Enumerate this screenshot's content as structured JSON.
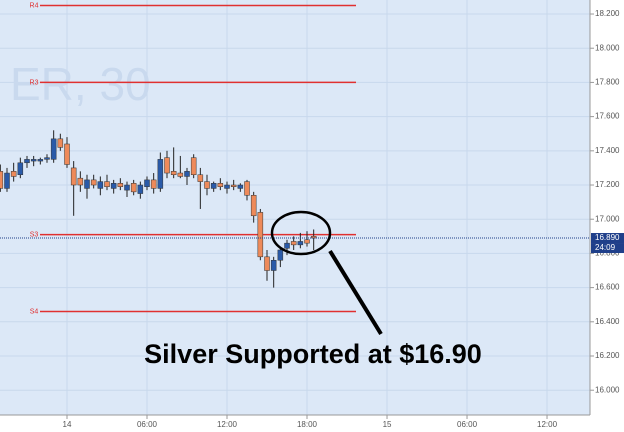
{
  "chart_data": {
    "type": "candlestick",
    "watermark": "ER, 30",
    "annotation": "Silver Supported at $16.90",
    "categories": [
      null,
      null,
      null,
      null,
      null,
      null,
      null,
      null,
      null,
      null,
      "14",
      null,
      null,
      null,
      null,
      null,
      null,
      null,
      null,
      null,
      null,
      null,
      "06:00",
      null,
      null,
      null,
      null,
      null,
      null,
      null,
      null,
      null,
      null,
      null,
      "12:00",
      null,
      null,
      null,
      null,
      null,
      null,
      null,
      null,
      null,
      null,
      null,
      "18:00",
      null,
      null,
      null,
      null,
      null,
      null,
      null,
      null,
      null,
      null,
      null,
      "15",
      null,
      null,
      null,
      null,
      null,
      null,
      null,
      null,
      null,
      null,
      null,
      "06:00",
      null,
      null,
      null,
      null,
      null,
      null,
      null,
      null,
      null,
      null,
      null,
      "12:00",
      null,
      null,
      null,
      null,
      null
    ],
    "open": [
      17.28,
      17.18,
      17.28,
      17.26,
      17.33,
      17.34,
      17.34,
      17.35,
      17.35,
      17.47,
      17.44,
      17.3,
      17.24,
      17.18,
      17.23,
      17.18,
      17.22,
      17.18,
      17.21,
      17.17,
      17.21,
      17.15,
      17.19,
      17.23,
      17.18,
      17.36,
      17.28,
      17.27,
      17.25,
      17.36,
      17.26,
      17.22,
      17.18,
      17.21,
      17.18,
      17.2,
      17.18,
      17.22,
      17.14,
      17.04,
      16.78,
      16.7,
      16.76,
      16.83,
      16.87,
      16.85,
      16.88,
      16.9,
      null,
      null,
      null,
      null,
      null,
      null,
      null,
      null,
      null,
      null,
      null,
      null,
      null,
      null,
      null,
      null,
      null,
      null,
      null,
      null,
      null,
      null,
      null,
      null,
      null,
      null,
      null,
      null,
      null,
      null,
      null,
      null,
      null,
      null,
      null,
      null,
      null,
      null,
      null,
      null
    ],
    "high": [
      17.32,
      17.3,
      17.33,
      17.36,
      17.37,
      17.37,
      17.36,
      17.38,
      17.52,
      17.5,
      17.48,
      17.34,
      17.28,
      17.26,
      17.26,
      17.25,
      17.26,
      17.23,
      17.24,
      17.22,
      17.23,
      17.22,
      17.25,
      17.27,
      17.39,
      17.4,
      17.42,
      17.37,
      17.3,
      17.38,
      17.3,
      17.26,
      17.22,
      17.24,
      17.22,
      17.23,
      17.21,
      17.23,
      17.16,
      17.06,
      16.82,
      16.78,
      16.84,
      16.88,
      16.9,
      16.92,
      16.93,
      16.94,
      null,
      null,
      null,
      null,
      null,
      null,
      null,
      null,
      null,
      null,
      null,
      null,
      null,
      null,
      null,
      null,
      null,
      null,
      null,
      null,
      null,
      null,
      null,
      null,
      null,
      null,
      null,
      null,
      null,
      null,
      null,
      null,
      null,
      null,
      null,
      null,
      null,
      null,
      null,
      null
    ],
    "low": [
      17.16,
      17.16,
      17.22,
      17.24,
      17.3,
      17.31,
      17.32,
      17.33,
      17.33,
      17.4,
      17.3,
      17.02,
      17.16,
      17.12,
      17.18,
      17.14,
      17.17,
      17.15,
      17.17,
      17.13,
      17.14,
      17.12,
      17.17,
      17.15,
      17.16,
      17.24,
      17.24,
      17.24,
      17.2,
      17.24,
      17.06,
      17.14,
      17.16,
      17.17,
      17.15,
      17.17,
      17.16,
      17.11,
      16.98,
      16.76,
      16.64,
      16.6,
      16.72,
      16.79,
      16.82,
      16.83,
      16.84,
      16.82,
      null,
      null,
      null,
      null,
      null,
      null,
      null,
      null,
      null,
      null,
      null,
      null,
      null,
      null,
      null,
      null,
      null,
      null,
      null,
      null,
      null,
      null,
      null,
      null,
      null,
      null,
      null,
      null,
      null,
      null,
      null,
      null,
      null,
      null,
      null,
      null,
      null,
      null,
      null,
      null
    ],
    "close": [
      17.18,
      17.27,
      17.25,
      17.33,
      17.35,
      17.35,
      17.35,
      17.36,
      17.47,
      17.42,
      17.32,
      17.2,
      17.2,
      17.23,
      17.2,
      17.22,
      17.19,
      17.21,
      17.19,
      17.2,
      17.16,
      17.2,
      17.23,
      17.18,
      17.35,
      17.27,
      17.26,
      17.25,
      17.28,
      17.26,
      17.22,
      17.18,
      17.21,
      17.19,
      17.2,
      17.19,
      17.2,
      17.14,
      17.02,
      16.78,
      16.7,
      16.76,
      16.82,
      16.86,
      16.85,
      16.87,
      16.86,
      16.89,
      null,
      null,
      null,
      null,
      null,
      null,
      null,
      null,
      null,
      null,
      null,
      null,
      null,
      null,
      null,
      null,
      null,
      null,
      null,
      null,
      null,
      null,
      null,
      null,
      null,
      null,
      null,
      null,
      null,
      null,
      null,
      null,
      null,
      null,
      null,
      null,
      null,
      null,
      null,
      null
    ],
    "up_color": "#2a5aa8",
    "down_color": "#ee8a5a",
    "levels": [
      {
        "label": "R4",
        "value": 18.25,
        "color": "#e03030"
      },
      {
        "label": "R3",
        "value": 17.8,
        "color": "#e03030"
      },
      {
        "label": "S3",
        "value": 16.91,
        "color": "#e03030"
      },
      {
        "label": "S4",
        "value": 16.46,
        "color": "#e03030"
      }
    ],
    "current_price": {
      "value": 16.89,
      "label": "16.890"
    },
    "countdown": "24:09",
    "ylim": [
      15.855,
      18.282
    ],
    "yticks": [
      {
        "value": 16.0,
        "label": "16.000"
      },
      {
        "value": 16.2,
        "label": "16.200"
      },
      {
        "value": 16.4,
        "label": "16.400"
      },
      {
        "value": 16.6,
        "label": "16.600"
      },
      {
        "value": 16.8,
        "label": "16.800"
      },
      {
        "value": 17.0,
        "label": "17.000"
      },
      {
        "value": 17.2,
        "label": "17.200"
      },
      {
        "value": 17.4,
        "label": "17.400"
      },
      {
        "value": 17.6,
        "label": "17.600"
      },
      {
        "value": 17.8,
        "label": "17.800"
      },
      {
        "value": 18.0,
        "label": "18.000"
      },
      {
        "value": 18.2,
        "label": "18.200"
      }
    ],
    "grid": true
  }
}
